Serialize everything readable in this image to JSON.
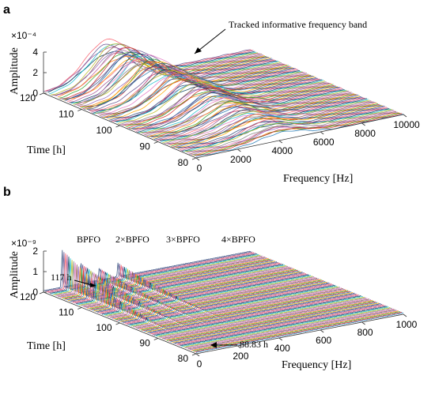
{
  "chart_data": [
    {
      "panel": "a",
      "type": "waterfall",
      "xlabel": "Frequency [Hz]",
      "ylabel": "Time [h]",
      "zlabel": "Amplitude",
      "z_exponent": "×10⁻⁴",
      "x_ticks": [
        "0",
        "2000",
        "4000",
        "6000",
        "8000",
        "10000"
      ],
      "y_ticks": [
        "80",
        "90",
        "100",
        "110",
        "120"
      ],
      "z_ticks": [
        "0",
        "2",
        "4"
      ],
      "xlim": [
        0,
        10000
      ],
      "ylim": [
        80,
        120
      ],
      "zlim": [
        0,
        4
      ],
      "series": [
        {
          "time_h": 80,
          "peak_freq_hz": 4200,
          "peak_amp": 0.8
        },
        {
          "time_h": 88.83,
          "peak_freq_hz": 4000,
          "peak_amp": 1.4
        },
        {
          "time_h": 100,
          "peak_freq_hz": 3800,
          "peak_amp": 2.3
        },
        {
          "time_h": 110,
          "peak_freq_hz": 3400,
          "peak_amp": 3.2
        },
        {
          "time_h": 117,
          "peak_freq_hz": 3100,
          "peak_amp": 3.6
        },
        {
          "time_h": 120,
          "peak_freq_hz": 3000,
          "peak_amp": 3.7
        }
      ],
      "annotations": [
        {
          "text": "Tracked informative frequency band"
        }
      ]
    },
    {
      "panel": "b",
      "type": "waterfall",
      "xlabel": "Frequency [Hz]",
      "ylabel": "Time [h]",
      "zlabel": "Amplitude",
      "z_exponent": "×10⁻⁹",
      "x_ticks": [
        "0",
        "200",
        "400",
        "600",
        "800",
        "1000"
      ],
      "y_ticks": [
        "80",
        "90",
        "100",
        "110",
        "120"
      ],
      "z_ticks": [
        "0",
        "1",
        "2"
      ],
      "xlim": [
        0,
        1000
      ],
      "ylim": [
        80,
        120
      ],
      "zlim": [
        0,
        2
      ],
      "harmonics": [
        {
          "label": "BPFO",
          "freq_hz": 90
        },
        {
          "label": "2×BPFO",
          "freq_hz": 180
        },
        {
          "label": "3×BPFO",
          "freq_hz": 270
        },
        {
          "label": "4×BPFO",
          "freq_hz": 360
        }
      ],
      "annotations": [
        {
          "text": "117 h",
          "time_h": 117
        },
        {
          "text": "88.83 h",
          "time_h": 88.83
        }
      ]
    }
  ]
}
